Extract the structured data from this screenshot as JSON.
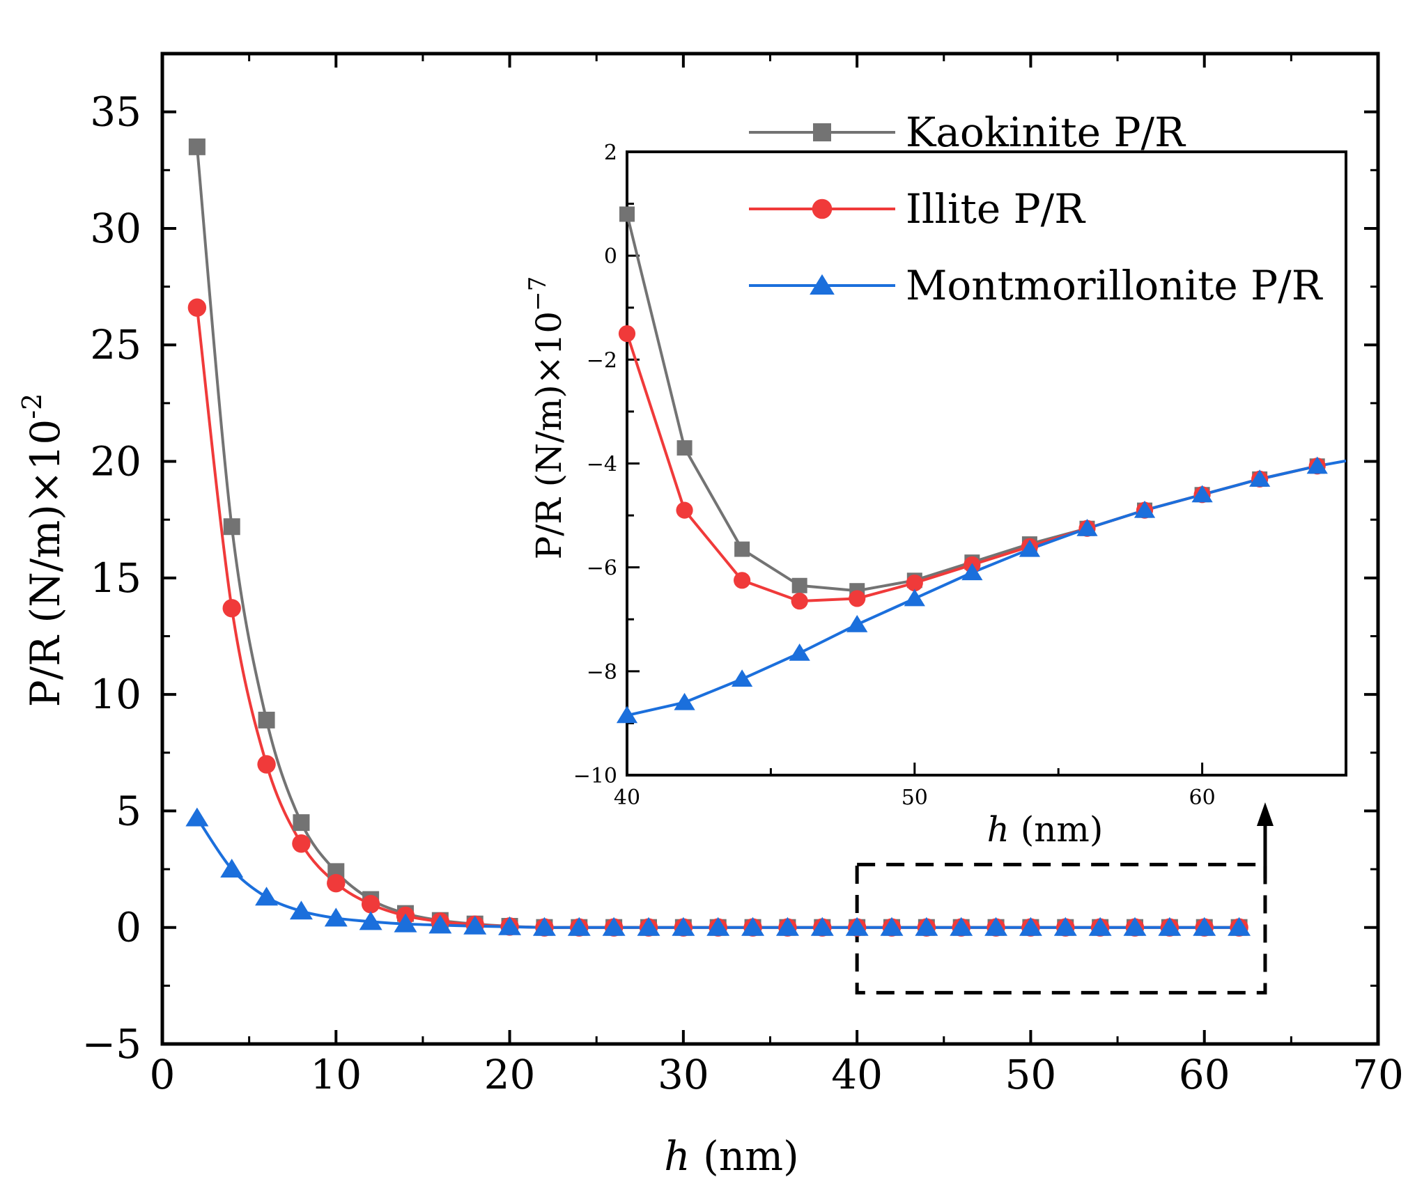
{
  "chart_data": [
    {
      "id": "main",
      "type": "line",
      "xlabel_var": "h",
      "xlabel_unit": " (nm)",
      "ylabel": "P/R (N/m)×10",
      "ylabel_exp": "-2",
      "xlim": [
        0,
        70
      ],
      "ylim": [
        -5,
        37.5
      ],
      "xticks": [
        0,
        10,
        20,
        30,
        40,
        50,
        60,
        70
      ],
      "yticks": [
        -5,
        0,
        5,
        10,
        15,
        20,
        25,
        30,
        35
      ],
      "xtick_labels": [
        "0",
        "10",
        "20",
        "30",
        "40",
        "50",
        "60",
        "70"
      ],
      "ytick_labels": [
        "−5",
        "0",
        "5",
        "10",
        "15",
        "20",
        "25",
        "30",
        "35"
      ],
      "x": [
        2,
        4,
        6,
        8,
        10,
        12,
        14,
        16,
        18,
        20,
        22,
        24,
        26,
        28,
        30,
        32,
        34,
        36,
        38,
        40,
        42,
        44,
        46,
        48,
        50,
        52,
        54,
        56,
        58,
        60,
        62
      ],
      "series": [
        {
          "name": "Kaokinite P/R",
          "marker": "square",
          "color": "#737373",
          "values": [
            33.5,
            17.2,
            8.9,
            4.5,
            2.4,
            1.2,
            0.6,
            0.3,
            0.15,
            0.05,
            0,
            0,
            0,
            0,
            0,
            0,
            0,
            0,
            0,
            0,
            0,
            0,
            0,
            0,
            0,
            0,
            0,
            0,
            0,
            0,
            0
          ]
        },
        {
          "name": "Illite P/R",
          "marker": "circle",
          "color": "#f03a3a",
          "values": [
            26.6,
            13.7,
            7.0,
            3.6,
            1.9,
            1.0,
            0.5,
            0.25,
            0.12,
            0.04,
            0,
            0,
            0,
            0,
            0,
            0,
            0,
            0,
            0,
            0,
            0,
            0,
            0,
            0,
            0,
            0,
            0,
            0,
            0,
            0,
            0
          ]
        },
        {
          "name": "Montmorillonite P/R",
          "marker": "triangle",
          "color": "#1b6fdc",
          "values": [
            4.7,
            2.5,
            1.3,
            0.7,
            0.4,
            0.25,
            0.15,
            0.1,
            0.06,
            0.03,
            0,
            0,
            0,
            0,
            0,
            0,
            0,
            0,
            0,
            0,
            0,
            0,
            0,
            0,
            0,
            0,
            0,
            0,
            0,
            0,
            0
          ]
        }
      ],
      "highlight_box": {
        "x_range": [
          40,
          63.5
        ],
        "y_range": [
          -2.8,
          2.7
        ]
      }
    },
    {
      "id": "inset",
      "type": "line",
      "xlabel_var": "h",
      "xlabel_unit": " (nm)",
      "ylabel": "P/R (N/m)×10",
      "ylabel_exp": "−7",
      "xlim": [
        40,
        65
      ],
      "ylim": [
        -10,
        2
      ],
      "xticks": [
        40,
        50,
        60
      ],
      "yticks": [
        -10,
        -8,
        -6,
        -4,
        -2,
        0,
        2
      ],
      "xtick_labels": [
        "40",
        "50",
        "60"
      ],
      "ytick_labels": [
        "−10",
        "−8",
        "−6",
        "−4",
        "−2",
        "0",
        "2"
      ],
      "x": [
        40,
        42,
        44,
        46,
        48,
        50,
        52,
        54,
        56,
        58,
        60,
        62,
        64
      ],
      "series": [
        {
          "name": "Kaokinite P/R",
          "marker": "square",
          "color": "#737373",
          "values": [
            0.8,
            -3.7,
            -5.65,
            -6.35,
            -6.45,
            -6.25,
            -5.9,
            -5.55,
            -5.25,
            -4.9,
            -4.6,
            -4.3,
            -4.05
          ]
        },
        {
          "name": "Illite P/R",
          "marker": "circle",
          "color": "#f03a3a",
          "values": [
            -1.5,
            -4.9,
            -6.25,
            -6.65,
            -6.6,
            -6.3,
            -5.95,
            -5.6,
            -5.25,
            -4.9,
            -4.6,
            -4.3,
            -4.05
          ]
        },
        {
          "name": "Montmorillonite P/R",
          "marker": "triangle",
          "color": "#1b6fdc",
          "values": [
            -8.85,
            -8.6,
            -8.15,
            -7.65,
            -7.1,
            -6.6,
            -6.1,
            -5.65,
            -5.25,
            -4.9,
            -4.6,
            -4.3,
            -4.05
          ]
        }
      ],
      "line_extends_to": 65,
      "line_end_value": -3.95
    }
  ],
  "legend": {
    "entries": [
      {
        "label": "Kaokinite P/R",
        "marker": "square",
        "color": "#737373"
      },
      {
        "label": "Illite P/R",
        "marker": "circle",
        "color": "#f03a3a"
      },
      {
        "label": "Montmorillonite P/R",
        "marker": "triangle",
        "color": "#1b6fdc"
      }
    ],
    "placement": "top-right"
  }
}
